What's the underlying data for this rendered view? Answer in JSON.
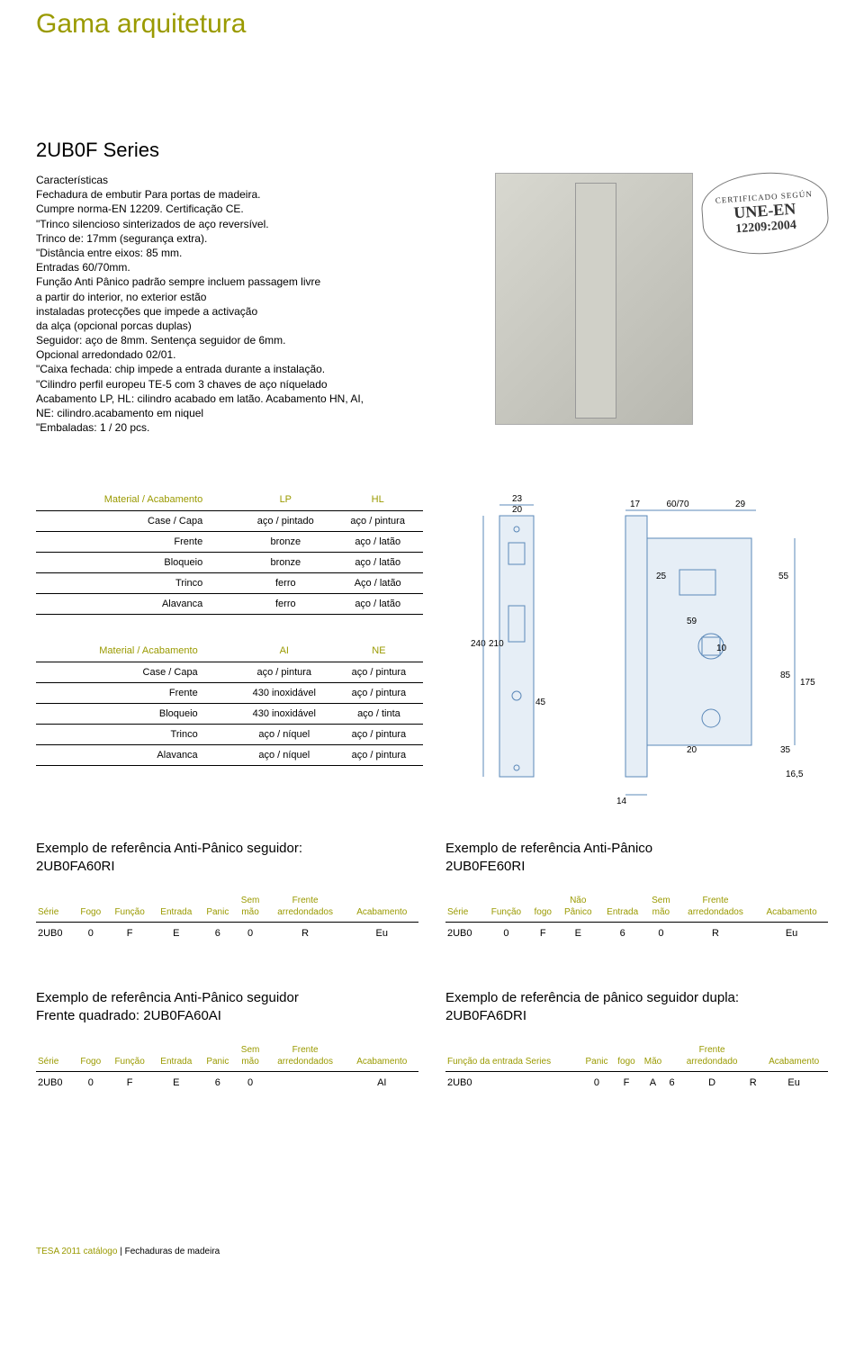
{
  "page_title": "Gama arquitetura",
  "series_title": "2UB0F Series",
  "description_heading": "Características",
  "description_lines": [
    "Fechadura de embutir Para portas de madeira.",
    "Cumpre norma-EN 12209. Certificação CE.",
    "\"Trinco silencioso sinterizados de aço reversível.",
    " Trinco de: 17mm (segurança extra).",
    "\"Distância entre eixos: 85 mm.",
    "Entradas 60/70mm.",
    "Função Anti Pânico padrão sempre incluem passagem livre",
    " a partir do interior, no exterior estão",
    " instaladas protecções que impede a activação",
    " da alça (opcional porcas duplas)",
    "Seguidor: aço de 8mm. Sentença seguidor de 6mm.",
    "Opcional arredondado 02/01.",
    "\"Caixa fechada: chip impede a entrada durante a instalação.",
    "\"Cilindro perfil europeu TE-5 com 3 chaves de aço níquelado",
    " Acabamento LP, HL: cilindro acabado em latão. Acabamento HN, AI,",
    " NE: cilindro.acabamento em niquel",
    "\"Embaladas: 1 / 20 pcs."
  ],
  "cert": {
    "top": "CERTIFICADO SEGÚN",
    "mid": "UNE-EN",
    "bot": "12209:2004"
  },
  "mat_table_1": {
    "header": [
      "Material / Acabamento",
      "LP",
      "HL"
    ],
    "rows": [
      [
        "Case / Capa",
        "aço / pintado",
        "aço / pintura"
      ],
      [
        "Frente",
        "bronze",
        "aço / latão"
      ],
      [
        "Bloqueio",
        "bronze",
        "aço / latão"
      ],
      [
        "Trinco",
        "ferro",
        "Aço / latão"
      ],
      [
        "Alavanca",
        "ferro",
        "aço / latão"
      ]
    ]
  },
  "mat_table_2": {
    "header": [
      "Material / Acabamento",
      "AI",
      "NE"
    ],
    "rows": [
      [
        "Case / Capa",
        "aço / pintura",
        "aço / pintura"
      ],
      [
        "Frente",
        "430 inoxidável",
        "aço / pintura"
      ],
      [
        "Bloqueio",
        "430 inoxidável",
        "aço / tinta"
      ],
      [
        "Trinco",
        "aço / níquel",
        "aço / pintura"
      ],
      [
        "Alavanca",
        "aço / níquel",
        "aço / pintura"
      ]
    ]
  },
  "diagram_dims": {
    "top_left_1": "23",
    "top_left_2": "20",
    "top_right_1": "17",
    "top_right_2": "60/70",
    "top_right_3": "29",
    "d25": "25",
    "d55": "55",
    "d59": "59",
    "d10": "10",
    "d240": "240",
    "d210": "210",
    "d45": "45",
    "d85": "85",
    "d175": "175",
    "d20": "20",
    "d35": "35",
    "d165": "16,5",
    "d14": "14"
  },
  "example_1": {
    "title": "Exemplo de referência Anti-Pânico seguidor:",
    "code": "2UB0FA60RI",
    "headers": [
      "Série",
      "Fogo",
      "Função",
      "Entrada",
      "Panic",
      "Sem\nmão",
      "Frente\narredondados",
      "Acabamento"
    ],
    "row": [
      "2UB0",
      "0",
      "F",
      "E",
      "6",
      "0",
      "R",
      "Eu"
    ]
  },
  "example_2": {
    "title": "Exemplo de referência Anti-Pânico",
    "code": "2UB0FE60RI",
    "headers": [
      "Série",
      "Função",
      "fogo",
      "Não\nPânico",
      "Entrada",
      "Sem\nmão",
      "Frente\narredondados",
      "Acabamento"
    ],
    "row": [
      "2UB0",
      "0",
      "F",
      "E",
      "6",
      "0",
      "R",
      "Eu"
    ]
  },
  "example_3": {
    "title": "Exemplo de referência Anti-Pânico seguidor",
    "code": "Frente quadrado: 2UB0FA60AI",
    "headers": [
      "Série",
      "Fogo",
      "Função",
      "Entrada",
      "Panic",
      "Sem\nmão",
      "Frente\narredondados",
      "Acabamento"
    ],
    "row": [
      "2UB0",
      "0",
      "F",
      "E",
      "6",
      "0",
      "",
      "AI"
    ]
  },
  "example_4": {
    "title": "Exemplo de referência de pânico seguidor dupla:",
    "code": "2UB0FA6DRI",
    "headers": [
      "Função da entrada Series",
      "Panic",
      "fogo",
      "Mão",
      "",
      "Frente\narredondado",
      "",
      "Acabamento"
    ],
    "row": [
      "2UB0",
      "0",
      "F",
      "A",
      "6",
      "D",
      "R",
      "Eu"
    ]
  },
  "footer_brand": "TESA 2011 catálogo",
  "footer_rest": " | Fechaduras de madeira"
}
